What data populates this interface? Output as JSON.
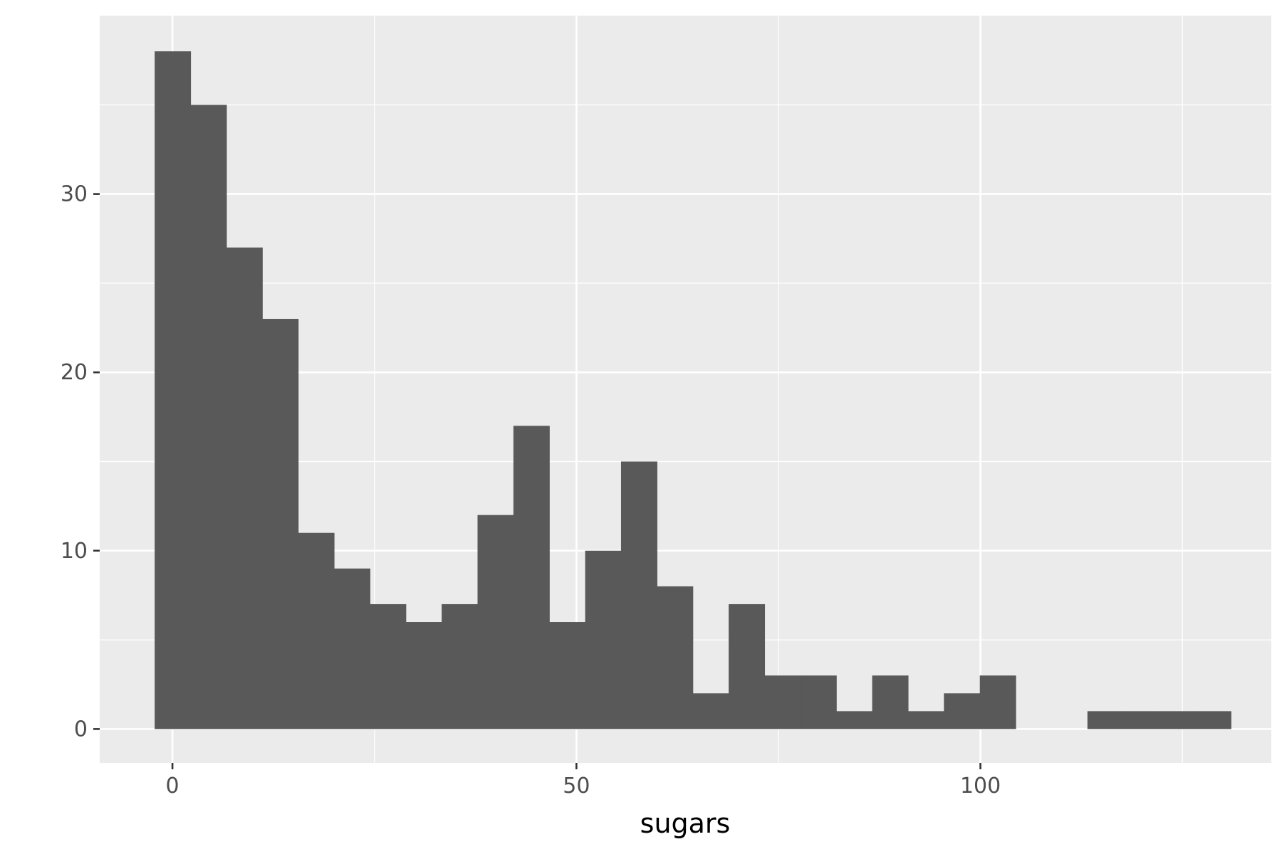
{
  "chart_data": {
    "type": "bar",
    "subtype": "histogram",
    "title": "",
    "xlabel": "sugars",
    "ylabel": "",
    "xlim": [
      -9,
      136
    ],
    "ylim": [
      -1.9,
      40
    ],
    "x_ticks": [
      0,
      50,
      100
    ],
    "x_minor_ticks": [
      25,
      75,
      125
    ],
    "y_ticks": [
      0,
      10,
      20,
      30
    ],
    "y_minor_ticks": [
      5,
      15,
      25,
      35
    ],
    "grid": true,
    "bin_width": 4.44,
    "bin_start": -2.2,
    "values": [
      38,
      35,
      27,
      23,
      11,
      9,
      7,
      6,
      7,
      12,
      17,
      6,
      10,
      15,
      8,
      2,
      7,
      3,
      3,
      1,
      3,
      1,
      2,
      3,
      0,
      0,
      1,
      1,
      1,
      1
    ],
    "colors": {
      "panel": "#ebebeb",
      "grid": "#ffffff",
      "bar": "#595959",
      "tick_text": "#4d4d4d",
      "tick_mark": "#333333",
      "axis_title": "#000000"
    }
  }
}
